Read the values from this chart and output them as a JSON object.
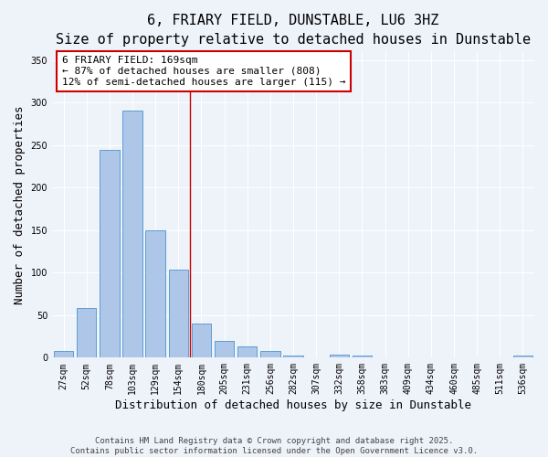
{
  "title": "6, FRIARY FIELD, DUNSTABLE, LU6 3HZ",
  "subtitle": "Size of property relative to detached houses in Dunstable",
  "xlabel": "Distribution of detached houses by size in Dunstable",
  "ylabel": "Number of detached properties",
  "categories": [
    "27sqm",
    "52sqm",
    "78sqm",
    "103sqm",
    "129sqm",
    "154sqm",
    "180sqm",
    "205sqm",
    "231sqm",
    "256sqm",
    "282sqm",
    "307sqm",
    "332sqm",
    "358sqm",
    "383sqm",
    "409sqm",
    "434sqm",
    "460sqm",
    "485sqm",
    "511sqm",
    "536sqm"
  ],
  "values": [
    8,
    58,
    244,
    290,
    150,
    103,
    40,
    20,
    13,
    8,
    3,
    0,
    4,
    2,
    0,
    0,
    0,
    0,
    0,
    0,
    2
  ],
  "bar_color": "#aec6e8",
  "bar_edge_color": "#5a9fd4",
  "vline_x": 5.5,
  "vline_color": "#cc0000",
  "annotation_text": "6 FRIARY FIELD: 169sqm\n← 87% of detached houses are smaller (808)\n12% of semi-detached houses are larger (115) →",
  "annotation_box_color": "#ffffff",
  "annotation_box_edge_color": "#cc0000",
  "ylim": [
    0,
    360
  ],
  "yticks": [
    0,
    50,
    100,
    150,
    200,
    250,
    300,
    350
  ],
  "footer_line1": "Contains HM Land Registry data © Crown copyright and database right 2025.",
  "footer_line2": "Contains public sector information licensed under the Open Government Licence v3.0.",
  "background_color": "#eef2f9",
  "title_fontsize": 11,
  "xlabel_fontsize": 9,
  "ylabel_fontsize": 9,
  "tick_fontsize": 7,
  "annotation_fontsize": 8,
  "footer_fontsize": 6.5
}
